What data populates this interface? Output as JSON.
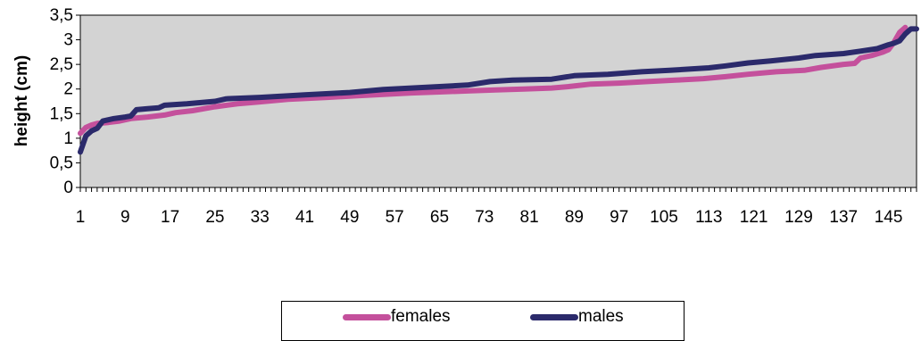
{
  "chart_data": {
    "type": "line",
    "title": "",
    "xlabel": "",
    "ylabel": "height (cm)",
    "ylim": [
      0,
      3.5
    ],
    "y_ticks": [
      "0",
      "0,5",
      "1",
      "1,5",
      "2",
      "2,5",
      "3",
      "3,5"
    ],
    "x_range": [
      1,
      150
    ],
    "x_tick_labels": [
      "1",
      "9",
      "17",
      "25",
      "33",
      "41",
      "49",
      "57",
      "65",
      "73",
      "81",
      "89",
      "97",
      "105",
      "113",
      "121",
      "129",
      "137",
      "145"
    ],
    "x_tick_values": [
      1,
      9,
      17,
      25,
      33,
      41,
      49,
      57,
      65,
      73,
      81,
      89,
      97,
      105,
      113,
      121,
      129,
      137,
      145
    ],
    "grid": false,
    "plot_background": "#d3d3d3",
    "legend_position": "bottom",
    "series": [
      {
        "name": "females",
        "color": "#c4509c",
        "points": [
          [
            1,
            1.1
          ],
          [
            2,
            1.22
          ],
          [
            3,
            1.27
          ],
          [
            4,
            1.3
          ],
          [
            6,
            1.32
          ],
          [
            8,
            1.35
          ],
          [
            10,
            1.4
          ],
          [
            13,
            1.43
          ],
          [
            16,
            1.47
          ],
          [
            18,
            1.52
          ],
          [
            21,
            1.56
          ],
          [
            25,
            1.64
          ],
          [
            29,
            1.7
          ],
          [
            33,
            1.74
          ],
          [
            38,
            1.79
          ],
          [
            45,
            1.83
          ],
          [
            50,
            1.86
          ],
          [
            55,
            1.89
          ],
          [
            60,
            1.92
          ],
          [
            65,
            1.94
          ],
          [
            70,
            1.96
          ],
          [
            75,
            1.98
          ],
          [
            80,
            2.0
          ],
          [
            85,
            2.02
          ],
          [
            88,
            2.05
          ],
          [
            92,
            2.1
          ],
          [
            97,
            2.12
          ],
          [
            102,
            2.15
          ],
          [
            107,
            2.18
          ],
          [
            112,
            2.21
          ],
          [
            116,
            2.25
          ],
          [
            120,
            2.3
          ],
          [
            125,
            2.35
          ],
          [
            130,
            2.38
          ],
          [
            133,
            2.44
          ],
          [
            137,
            2.5
          ],
          [
            139,
            2.52
          ],
          [
            140,
            2.63
          ],
          [
            142,
            2.68
          ],
          [
            144,
            2.75
          ],
          [
            145,
            2.8
          ],
          [
            146,
            2.95
          ],
          [
            147,
            3.15
          ],
          [
            148,
            3.25
          ]
        ]
      },
      {
        "name": "males",
        "color": "#2b2a6b",
        "points": [
          [
            1,
            0.72
          ],
          [
            2,
            1.05
          ],
          [
            3,
            1.15
          ],
          [
            4,
            1.2
          ],
          [
            5,
            1.35
          ],
          [
            7,
            1.4
          ],
          [
            9,
            1.43
          ],
          [
            10,
            1.45
          ],
          [
            11,
            1.58
          ],
          [
            13,
            1.6
          ],
          [
            15,
            1.62
          ],
          [
            16,
            1.67
          ],
          [
            20,
            1.7
          ],
          [
            25,
            1.75
          ],
          [
            27,
            1.8
          ],
          [
            33,
            1.83
          ],
          [
            41,
            1.88
          ],
          [
            49,
            1.93
          ],
          [
            55,
            1.99
          ],
          [
            60,
            2.02
          ],
          [
            65,
            2.05
          ],
          [
            70,
            2.08
          ],
          [
            74,
            2.15
          ],
          [
            78,
            2.18
          ],
          [
            85,
            2.2
          ],
          [
            89,
            2.27
          ],
          [
            95,
            2.3
          ],
          [
            101,
            2.35
          ],
          [
            106,
            2.38
          ],
          [
            113,
            2.43
          ],
          [
            116,
            2.47
          ],
          [
            120,
            2.53
          ],
          [
            124,
            2.57
          ],
          [
            129,
            2.63
          ],
          [
            132,
            2.68
          ],
          [
            137,
            2.72
          ],
          [
            140,
            2.77
          ],
          [
            143,
            2.82
          ],
          [
            145,
            2.9
          ],
          [
            146,
            2.93
          ],
          [
            147,
            2.98
          ],
          [
            148,
            3.12
          ],
          [
            149,
            3.22
          ],
          [
            150,
            3.22
          ]
        ]
      }
    ]
  }
}
